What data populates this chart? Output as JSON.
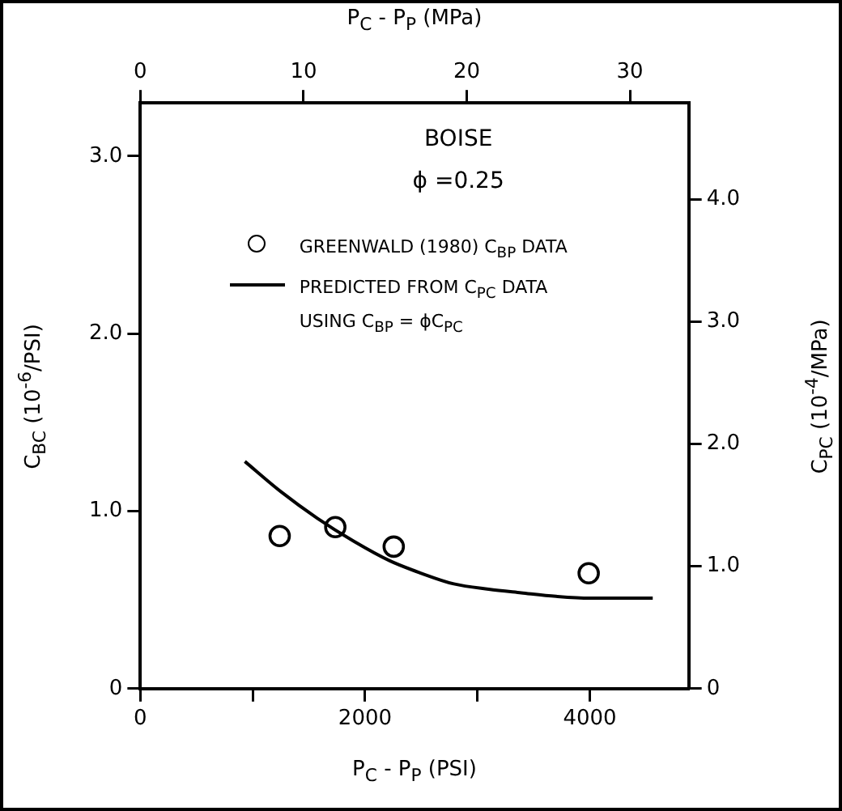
{
  "chart_data": {
    "type": "scatter",
    "xlabel": "P$_{C}$ - P$_{P}$ (PSI)",
    "x2label": "P$_{C}$ - P$_{P}$ (MPa)",
    "ylabel": "C$_{BC}$ (10$^{-6}$/PSI)",
    "y2label": "C$_{PC}$ (10$^{-4}$/MPa)",
    "annotations": [
      "BOISE",
      "ϕ =0.25"
    ],
    "xlim": [
      0,
      4880
    ],
    "xticks": [
      0,
      {
        "value": 1000,
        "label": null
      },
      2000,
      {
        "value": 3000,
        "label": null
      },
      4000
    ],
    "x2lim": [
      0,
      33.6
    ],
    "x2ticks": [
      0,
      10,
      20,
      30
    ],
    "ylim": [
      0,
      3.3
    ],
    "yticks": [
      0,
      {
        "value": 1,
        "label": "1.0"
      },
      {
        "value": 2,
        "label": "2.0"
      },
      {
        "value": 3,
        "label": "3.0"
      }
    ],
    "y2lim": [
      0,
      4.79
    ],
    "y2ticks": [
      0,
      {
        "value": 1,
        "label": "1.0"
      },
      {
        "value": 2,
        "label": "2.0"
      },
      {
        "value": 3,
        "label": "3.0"
      },
      {
        "value": 4,
        "label": "4.0"
      }
    ],
    "grid": false,
    "legend": "top",
    "marker": "circle",
    "series": [
      {
        "name": "GREENWALD (1980) C$_{BP}$ DATA",
        "type": "scatter",
        "color": "#000000",
        "x": [
          1240,
          1735,
          2255,
          3990
        ],
        "values": [
          0.86,
          0.91,
          0.8,
          0.65
        ]
      },
      {
        "name": "PREDICTED FROM C$_{PC}$ DATA USING C$_{BP}$ = ϕC$_{PC}$",
        "type": "line",
        "marker": "none",
        "line_style": "solid",
        "color": "#000000",
        "x": [
          930,
          1250,
          1575,
          1900,
          2220,
          2500,
          2790,
          3100,
          3390,
          3700,
          4000,
          4300,
          4560
        ],
        "values": [
          1.28,
          1.11,
          0.96,
          0.83,
          0.72,
          0.65,
          0.59,
          0.56,
          0.54,
          0.52,
          0.51,
          0.51,
          0.51
        ]
      }
    ]
  }
}
